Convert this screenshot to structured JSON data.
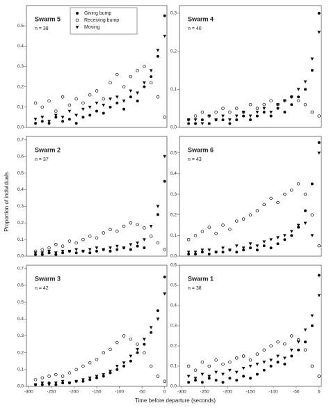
{
  "axis_labels": {
    "y": "Proportion of individuals",
    "x": "Time before departure (seconds)"
  },
  "chart_data": [
    {
      "type": "scatter",
      "title": "Swarm 5",
      "subtitle": "n = 38",
      "legend": "top-center",
      "x": [
        -285,
        -270,
        -255,
        -240,
        -225,
        -210,
        -195,
        -180,
        -165,
        -150,
        -135,
        -120,
        -105,
        -90,
        -75,
        -60,
        -45,
        -30,
        -15,
        0
      ],
      "xlim": [
        -305,
        5
      ],
      "ylim": [
        0,
        0.6
      ],
      "yticks": [
        {
          "value": 0,
          "label": "0.0"
        },
        0.1,
        0.2,
        0.3,
        0.4,
        0.5
      ],
      "series": [
        {
          "name": "Giving bump",
          "color": "#111111",
          "marker": "circle",
          "values": [
            0.02,
            0.03,
            0.02,
            0.05,
            0.03,
            0.04,
            0.02,
            0.05,
            0.06,
            0.08,
            0.07,
            0.1,
            0.12,
            0.09,
            0.15,
            0.13,
            0.2,
            0.25,
            0.35,
            0.55
          ]
        },
        {
          "name": "Receiving bump",
          "color": "#111111",
          "marker": "open-circle",
          "values": [
            0.12,
            0.1,
            0.13,
            0.08,
            0.15,
            0.11,
            0.14,
            0.12,
            0.16,
            0.18,
            0.14,
            0.22,
            0.26,
            0.2,
            0.25,
            0.28,
            0.3,
            0.22,
            0.15,
            0.05
          ]
        },
        {
          "name": "Moving",
          "color": "#111111",
          "marker": "triangle-down",
          "values": [
            0.04,
            0.05,
            0.03,
            0.06,
            0.05,
            0.08,
            0.06,
            0.09,
            0.1,
            0.12,
            0.11,
            0.14,
            0.15,
            0.13,
            0.18,
            0.17,
            0.22,
            0.28,
            0.38,
            0.45
          ]
        }
      ]
    },
    {
      "type": "scatter",
      "title": "Swarm 4",
      "subtitle": "n = 40",
      "x": [
        -285,
        -270,
        -255,
        -240,
        -225,
        -210,
        -195,
        -180,
        -165,
        -150,
        -135,
        -120,
        -105,
        -90,
        -75,
        -60,
        -45,
        -30,
        -15,
        0
      ],
      "xlim": [
        -305,
        5
      ],
      "ylim": [
        0,
        0.32
      ],
      "yticks": [
        {
          "value": 0,
          "label": "0.0"
        },
        0.1,
        0.2,
        0.3
      ],
      "series": [
        {
          "color": "#111111",
          "marker": "circle",
          "values": [
            0.01,
            0.01,
            0.02,
            0.01,
            0.02,
            0.02,
            0.01,
            0.02,
            0.03,
            0.02,
            0.03,
            0.04,
            0.03,
            0.05,
            0.04,
            0.06,
            0.08,
            0.1,
            0.15,
            0.3
          ]
        },
        {
          "color": "#111111",
          "marker": "open-circle",
          "values": [
            0.02,
            0.03,
            0.04,
            0.03,
            0.04,
            0.05,
            0.04,
            0.05,
            0.04,
            0.06,
            0.05,
            0.06,
            0.07,
            0.06,
            0.07,
            0.08,
            0.07,
            0.06,
            0.04,
            0.03
          ]
        },
        {
          "color": "#111111",
          "marker": "triangle-down",
          "values": [
            0.02,
            0.02,
            0.01,
            0.03,
            0.02,
            0.03,
            0.02,
            0.03,
            0.04,
            0.03,
            0.04,
            0.05,
            0.04,
            0.06,
            0.07,
            0.08,
            0.1,
            0.12,
            0.18,
            0.25
          ]
        }
      ]
    },
    {
      "type": "scatter",
      "title": "Swarm 2",
      "subtitle": "n = 37",
      "x": [
        -285,
        -270,
        -255,
        -240,
        -225,
        -210,
        -195,
        -180,
        -165,
        -150,
        -135,
        -120,
        -105,
        -90,
        -75,
        -60,
        -45,
        -30,
        -15,
        0
      ],
      "xlim": [
        -305,
        5
      ],
      "ylim": [
        0,
        0.72
      ],
      "yticks": [
        {
          "value": 0,
          "label": "0.0"
        },
        0.1,
        0.2,
        0.3,
        0.4,
        0.5,
        0.6,
        0.7
      ],
      "series": [
        {
          "color": "#111111",
          "marker": "circle",
          "values": [
            0.01,
            0.01,
            0.02,
            0.01,
            0.02,
            0.03,
            0.02,
            0.03,
            0.02,
            0.03,
            0.04,
            0.03,
            0.04,
            0.05,
            0.04,
            0.06,
            0.05,
            0.12,
            0.25,
            0.45
          ]
        },
        {
          "color": "#111111",
          "marker": "open-circle",
          "values": [
            0.03,
            0.04,
            0.05,
            0.07,
            0.06,
            0.09,
            0.08,
            0.1,
            0.12,
            0.11,
            0.14,
            0.16,
            0.15,
            0.18,
            0.2,
            0.19,
            0.17,
            0.12,
            0.08,
            0.04
          ]
        },
        {
          "color": "#111111",
          "marker": "triangle-down",
          "values": [
            0.02,
            0.02,
            0.03,
            0.02,
            0.03,
            0.03,
            0.04,
            0.03,
            0.04,
            0.05,
            0.04,
            0.05,
            0.06,
            0.05,
            0.07,
            0.08,
            0.1,
            0.18,
            0.3,
            0.6
          ]
        }
      ]
    },
    {
      "type": "scatter",
      "title": "Swarm 6",
      "subtitle": "n = 43",
      "x": [
        -285,
        -270,
        -255,
        -240,
        -225,
        -210,
        -195,
        -180,
        -165,
        -150,
        -135,
        -120,
        -105,
        -90,
        -75,
        -60,
        -45,
        -30,
        -15,
        0
      ],
      "xlim": [
        -305,
        5
      ],
      "ylim": [
        0,
        0.58
      ],
      "yticks": [
        {
          "value": 0,
          "label": "0.0"
        },
        0.1,
        0.2,
        0.3,
        0.4,
        0.5
      ],
      "series": [
        {
          "color": "#111111",
          "marker": "circle",
          "values": [
            0.01,
            0.01,
            0.02,
            0.01,
            0.02,
            0.02,
            0.03,
            0.02,
            0.03,
            0.04,
            0.03,
            0.05,
            0.04,
            0.06,
            0.08,
            0.1,
            0.14,
            0.22,
            0.35,
            0.55
          ]
        },
        {
          "color": "#111111",
          "marker": "open-circle",
          "values": [
            0.08,
            0.1,
            0.12,
            0.14,
            0.11,
            0.15,
            0.13,
            0.17,
            0.18,
            0.2,
            0.22,
            0.25,
            0.28,
            0.26,
            0.3,
            0.32,
            0.35,
            0.3,
            0.2,
            0.05
          ]
        },
        {
          "color": "#111111",
          "marker": "triangle-down",
          "values": [
            0.02,
            0.02,
            0.03,
            0.03,
            0.02,
            0.04,
            0.03,
            0.05,
            0.04,
            0.06,
            0.05,
            0.07,
            0.08,
            0.09,
            0.1,
            0.12,
            0.15,
            0.16,
            0.1,
            0.5
          ]
        }
      ]
    },
    {
      "type": "scatter",
      "title": "Swarm 3",
      "subtitle": "n = 42",
      "x": [
        -285,
        -270,
        -255,
        -240,
        -225,
        -210,
        -195,
        -180,
        -165,
        -150,
        -135,
        -120,
        -105,
        -90,
        -75,
        -60,
        -45,
        -30,
        -15,
        0
      ],
      "xlim": [
        -305,
        5
      ],
      "ylim": [
        0,
        0.72
      ],
      "xticks": [
        -300,
        -250,
        -200,
        -150,
        -100,
        -50,
        0
      ],
      "yticks": [
        {
          "value": 0,
          "label": "0.0"
        },
        0.1,
        0.2,
        0.3,
        0.4,
        0.5,
        0.6,
        0.7
      ],
      "series": [
        {
          "color": "#111111",
          "marker": "circle",
          "values": [
            0.01,
            0.01,
            0.02,
            0.01,
            0.02,
            0.02,
            0.03,
            0.03,
            0.04,
            0.05,
            0.06,
            0.08,
            0.1,
            0.12,
            0.15,
            0.2,
            0.25,
            0.32,
            0.45,
            0.65
          ]
        },
        {
          "color": "#111111",
          "marker": "open-circle",
          "values": [
            0.04,
            0.05,
            0.06,
            0.07,
            0.06,
            0.08,
            0.1,
            0.12,
            0.14,
            0.16,
            0.2,
            0.22,
            0.26,
            0.3,
            0.28,
            0.25,
            0.2,
            0.12,
            0.06,
            0.03
          ]
        },
        {
          "color": "#111111",
          "marker": "triangle-down",
          "values": [
            0.01,
            0.02,
            0.01,
            0.02,
            0.03,
            0.02,
            0.03,
            0.04,
            0.05,
            0.06,
            0.07,
            0.09,
            0.12,
            0.14,
            0.18,
            0.22,
            0.28,
            0.35,
            0.4,
            0.55
          ]
        }
      ]
    },
    {
      "type": "scatter",
      "title": "Swarm 1",
      "subtitle": "n = 38",
      "x": [
        -285,
        -270,
        -255,
        -240,
        -225,
        -210,
        -195,
        -180,
        -165,
        -150,
        -135,
        -120,
        -105,
        -90,
        -75,
        -60,
        -45,
        -30,
        -15,
        0
      ],
      "xlim": [
        -305,
        5
      ],
      "ylim": [
        0,
        0.6
      ],
      "xticks": [
        -300,
        -250,
        -200,
        -150,
        -100,
        -50,
        0
      ],
      "yticks": [
        {
          "value": 0,
          "label": "0.0"
        },
        0.1,
        0.2,
        0.3,
        0.4,
        0.5,
        0.6
      ],
      "series": [
        {
          "color": "#111111",
          "marker": "circle",
          "values": [
            0.02,
            0.03,
            0.02,
            0.04,
            0.03,
            0.02,
            0.04,
            0.03,
            0.05,
            0.04,
            0.06,
            0.08,
            0.1,
            0.12,
            0.11,
            0.15,
            0.18,
            0.22,
            0.3,
            0.55
          ]
        },
        {
          "color": "#111111",
          "marker": "open-circle",
          "values": [
            0.1,
            0.08,
            0.12,
            0.1,
            0.13,
            0.11,
            0.12,
            0.14,
            0.15,
            0.13,
            0.16,
            0.18,
            0.2,
            0.22,
            0.21,
            0.25,
            0.23,
            0.18,
            0.1,
            0.05
          ]
        },
        {
          "color": "#111111",
          "marker": "triangle-down",
          "values": [
            0.05,
            0.04,
            0.06,
            0.05,
            0.07,
            0.06,
            0.08,
            0.07,
            0.09,
            0.1,
            0.11,
            0.12,
            0.13,
            0.15,
            0.14,
            0.18,
            0.22,
            0.28,
            0.35,
            0.45
          ]
        }
      ]
    }
  ]
}
